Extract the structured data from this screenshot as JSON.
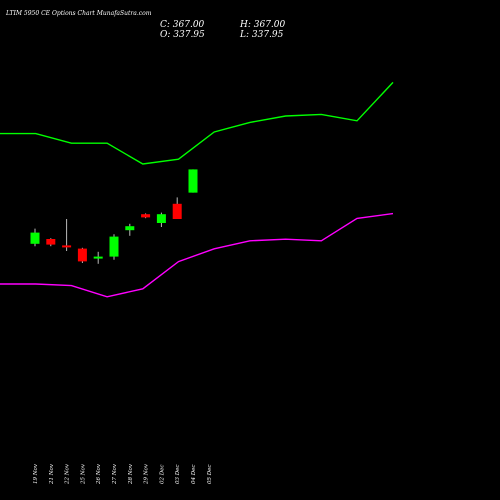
{
  "chart_data": {
    "type": "candlestick",
    "title": "LTIM 5950  CE Options  Chart MunafaSutra.com",
    "ohlc_summary": {
      "close_label": "C: 367.00",
      "high_label": "H: 367.00",
      "open_label": "O: 337.95",
      "low_label": "L: 337.95"
    },
    "categories": [
      "19 Nov",
      "21 Nov",
      "22 Nov",
      "25 Nov",
      "26 Nov",
      "27 Nov",
      "28 Nov",
      "29 Nov",
      "02 Dec",
      "03 Dec",
      "04 Dec",
      "05 Dec"
    ],
    "candles": [
      {
        "date": "19 Nov",
        "open": 274,
        "high": 293,
        "low": 271,
        "close": 288
      },
      {
        "date": "21 Nov",
        "open": 280,
        "high": 281,
        "low": 271,
        "close": 273
      },
      {
        "date": "22 Nov",
        "open": 272,
        "high": 305,
        "low": 265,
        "close": 271
      },
      {
        "date": "25 Nov",
        "open": 268,
        "high": 269,
        "low": 250,
        "close": 252
      },
      {
        "date": "26 Nov",
        "open": 257,
        "high": 264,
        "low": 249,
        "close": 258
      },
      {
        "date": "27 Nov",
        "open": 258,
        "high": 286,
        "low": 254,
        "close": 283
      },
      {
        "date": "28 Nov",
        "open": 291,
        "high": 299,
        "low": 284,
        "close": 296
      },
      {
        "date": "29 Nov",
        "open": 311,
        "high": 312,
        "low": 306,
        "close": 307
      },
      {
        "date": "02 Dec",
        "open": 300,
        "high": 313,
        "low": 295,
        "close": 311
      },
      {
        "date": "03 Dec",
        "open": 324,
        "high": 332,
        "low": 305,
        "close": 305
      },
      {
        "date": "04 Dec",
        "open": 337.95,
        "high": 367,
        "low": 337.95,
        "close": 367
      }
    ],
    "series": [
      {
        "color": "#00ff00",
        "values": [
          604,
          604,
          598,
          598,
          585,
          588,
          605,
          611,
          615,
          616,
          612,
          636
        ]
      },
      {
        "color": "#ff00ff",
        "values": [
          510,
          510,
          509,
          502,
          507,
          524,
          532,
          537,
          538,
          537,
          551,
          554
        ]
      }
    ],
    "colors": {
      "up": "#00ff00",
      "down": "#ff0000",
      "background": "#000000"
    }
  }
}
